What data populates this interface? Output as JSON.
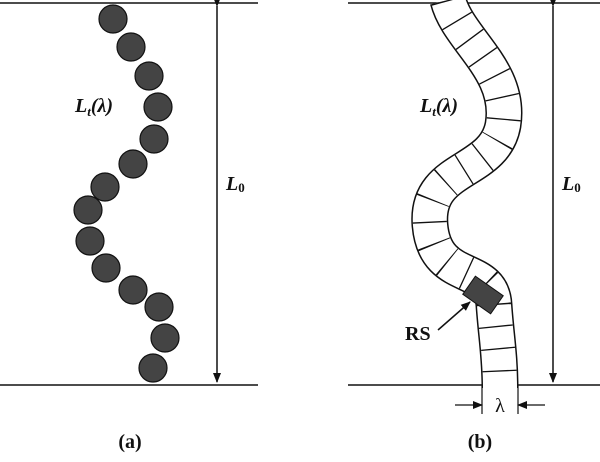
{
  "panel_a": {
    "length_label": {
      "main": "L",
      "sub": "t",
      "arg": "(λ)"
    },
    "end_label": {
      "main": "L",
      "sub": "0"
    },
    "caption": "(a)"
  },
  "panel_b": {
    "length_label": {
      "main": "L",
      "sub": "t",
      "arg": "(λ)"
    },
    "end_label": {
      "main": "L",
      "sub": "0"
    },
    "segment_label": "RS",
    "width_label": "λ",
    "caption": "(b)"
  }
}
